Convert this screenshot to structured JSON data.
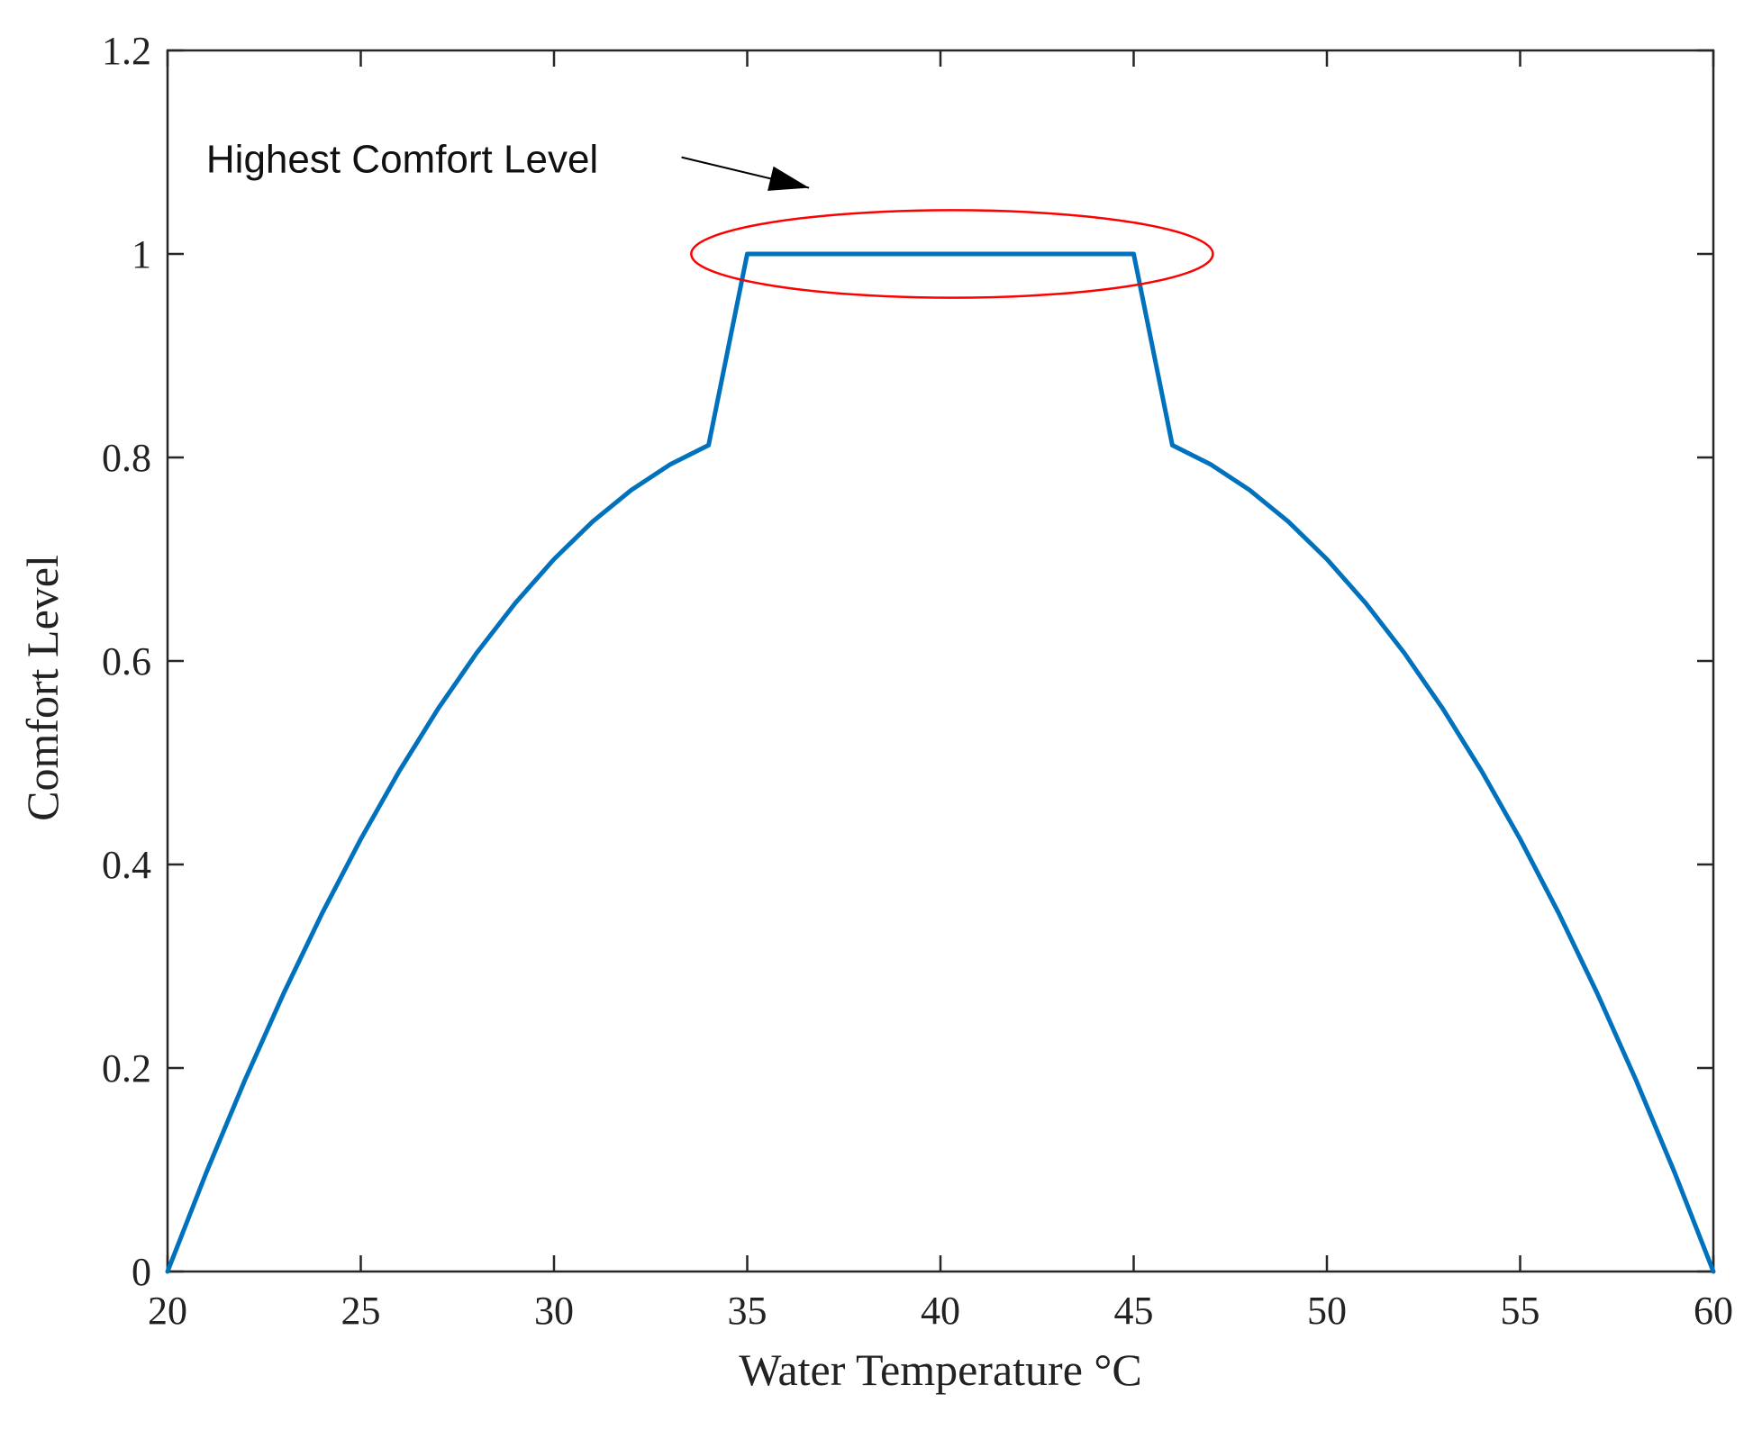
{
  "chart_data": {
    "type": "line",
    "title": "",
    "xlabel": "Water Temperature °C",
    "ylabel": "Comfort Level",
    "xlim": [
      20,
      60
    ],
    "ylim": [
      0,
      1.2
    ],
    "xticks": [
      20,
      25,
      30,
      35,
      40,
      45,
      50,
      55,
      60
    ],
    "xtick_labels": [
      "20",
      "25",
      "30",
      "35",
      "40",
      "45",
      "50",
      "55",
      "60"
    ],
    "yticks": [
      0,
      0.2,
      0.4,
      0.6,
      0.8,
      1,
      1.2
    ],
    "ytick_labels": [
      "0",
      "0.2",
      "0.4",
      "0.6",
      "0.8",
      "1",
      "1.2"
    ],
    "grid": false,
    "series": [
      {
        "name": "Comfort Level",
        "color": "#0072BD",
        "x": [
          20,
          21,
          22,
          23,
          24,
          25,
          26,
          27,
          28,
          29,
          30,
          31,
          32,
          33,
          34,
          35,
          36,
          37,
          38,
          39,
          40,
          41,
          42,
          43,
          44,
          45,
          46,
          47,
          48,
          49,
          50,
          51,
          52,
          53,
          54,
          55,
          56,
          57,
          58,
          59,
          60
        ],
        "y": [
          0,
          0.097,
          0.188,
          0.273,
          0.352,
          0.425,
          0.492,
          0.553,
          0.608,
          0.657,
          0.7,
          0.737,
          0.768,
          0.793,
          0.812,
          1.0,
          1.0,
          1.0,
          1.0,
          1.0,
          1.0,
          1.0,
          1.0,
          1.0,
          1.0,
          1.0,
          0.812,
          0.793,
          0.768,
          0.737,
          0.7,
          0.657,
          0.608,
          0.553,
          0.492,
          0.425,
          0.352,
          0.273,
          0.188,
          0.097,
          0
        ]
      }
    ],
    "annotations": [
      {
        "text": "Highest Comfort Level",
        "type": "text-arrow",
        "text_anchor": [
          21,
          1.08
        ],
        "arrow_tail": [
          33.3,
          1.095
        ],
        "arrow_head": [
          36.6,
          1.065
        ]
      },
      {
        "type": "ellipse",
        "color": "#FF0000",
        "center": [
          40.3,
          1.0
        ],
        "rx_data": 6.75,
        "ry_data": 0.043
      }
    ]
  }
}
